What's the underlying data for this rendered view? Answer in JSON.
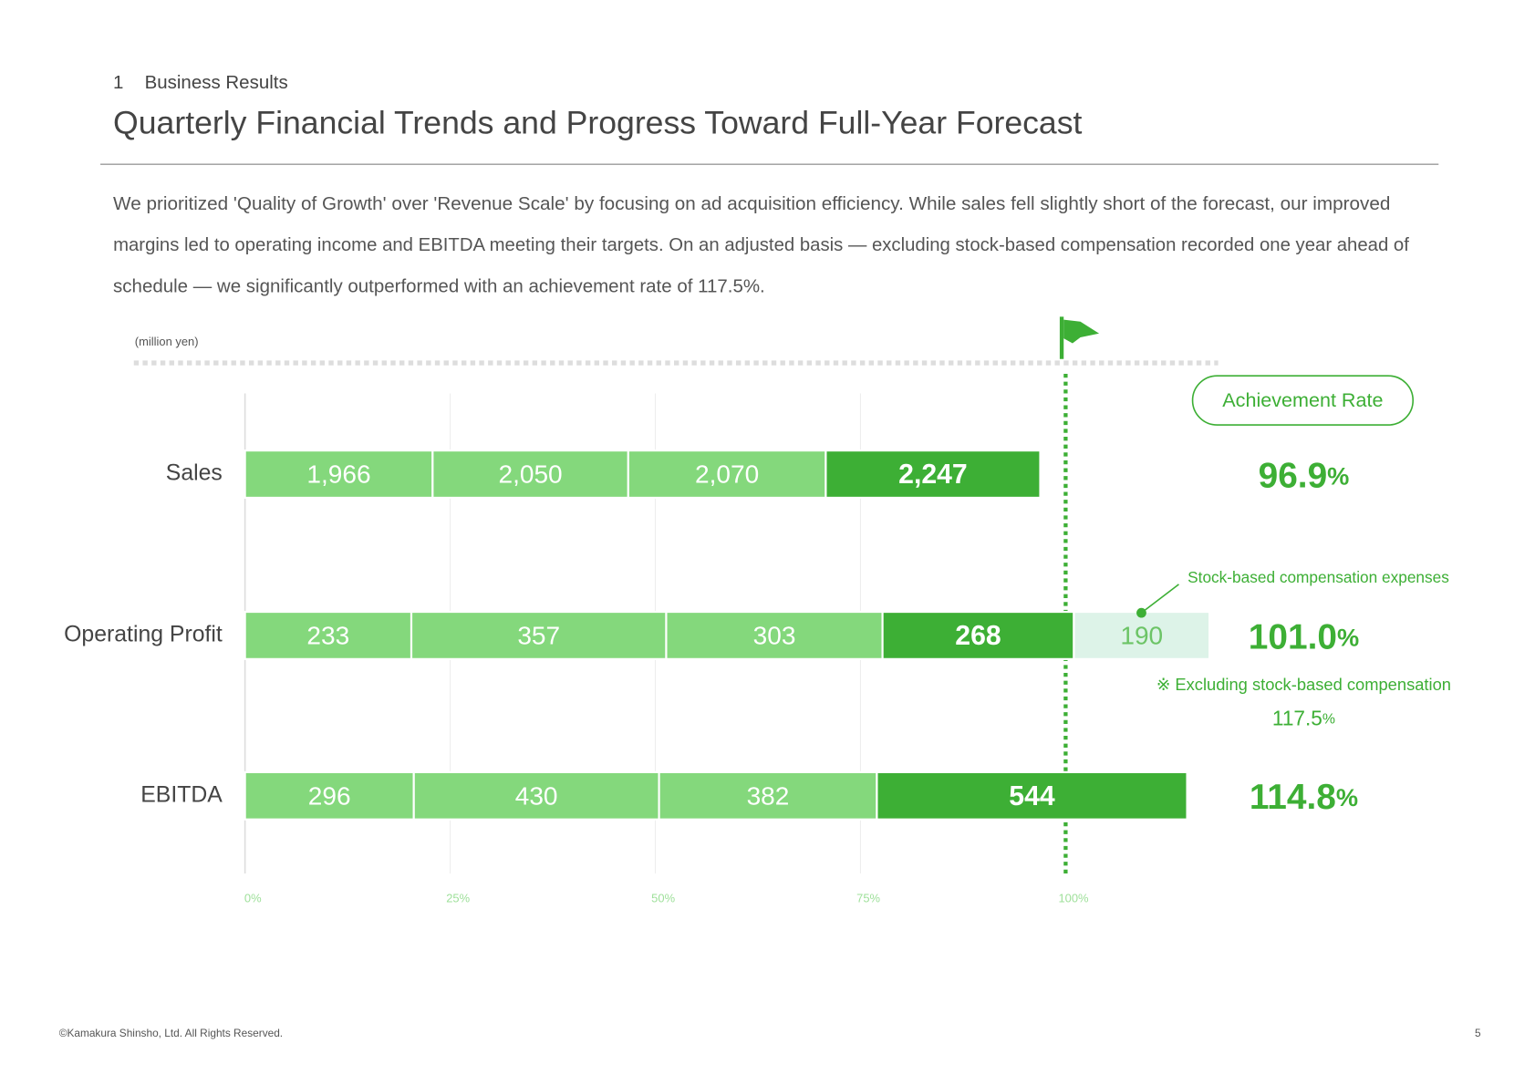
{
  "section_number": "1",
  "section": "Business Results",
  "title": "Quarterly Financial Trends and Progress Toward Full-Year Forecast",
  "body": [
    "We prioritized 'Quality of Growth' over 'Revenue Scale' by focusing on ad acquisition efficiency. While sales fell slightly short of the forecast, our improved",
    "margins led to operating income and EBITDA meeting their targets. On an adjusted basis — excluding stock-based compensation recorded one year ahead of",
    "schedule — we significantly outperformed with an achievement rate of 117.5%."
  ],
  "footer": "©Kamakura Shinsho, Ltd. All Rights Reserved.",
  "page_number": "5",
  "chart_data": {
    "type": "stacked-bar",
    "orientation": "horizontal",
    "unit_label": "(million yen)",
    "rate_header": "Achievement Rate",
    "colors": [
      "#84d87c",
      "#84d87c",
      "#84d87c",
      "#3daf35"
    ],
    "rows": [
      {
        "category": "Sales",
        "values": [
          1966,
          2050,
          2070,
          2247
        ],
        "value_labels": [
          "1,966",
          "2,050",
          "2,070",
          "2,247"
        ],
        "rate": 96.9,
        "rate_label": "96.9%"
      },
      {
        "category": "Operating Profit",
        "values": [
          233,
          357,
          303,
          268
        ],
        "rate": 101.0,
        "rate_label": "101.0%",
        "extra": {
          "name": "Stock-based compensation expenses",
          "value": 190,
          "color": "#ddf3e8",
          "adjusted_note": "※ Excluding stock-based compensation",
          "adjusted_rate": 117.5,
          "adjusted_rate_label": "117.5%"
        }
      },
      {
        "category": "EBITDA",
        "values": [
          296,
          430,
          382,
          544
        ],
        "rate": 114.8,
        "rate_label": "114.8%"
      }
    ],
    "xlim": [
      0,
      120
    ],
    "xticks": [
      {
        "value": 0,
        "label": "0%"
      },
      {
        "value": 25,
        "label": "25%"
      },
      {
        "value": 50,
        "label": "50%"
      },
      {
        "value": 75,
        "label": "75%"
      },
      {
        "value": 100,
        "label": "100%"
      }
    ]
  }
}
